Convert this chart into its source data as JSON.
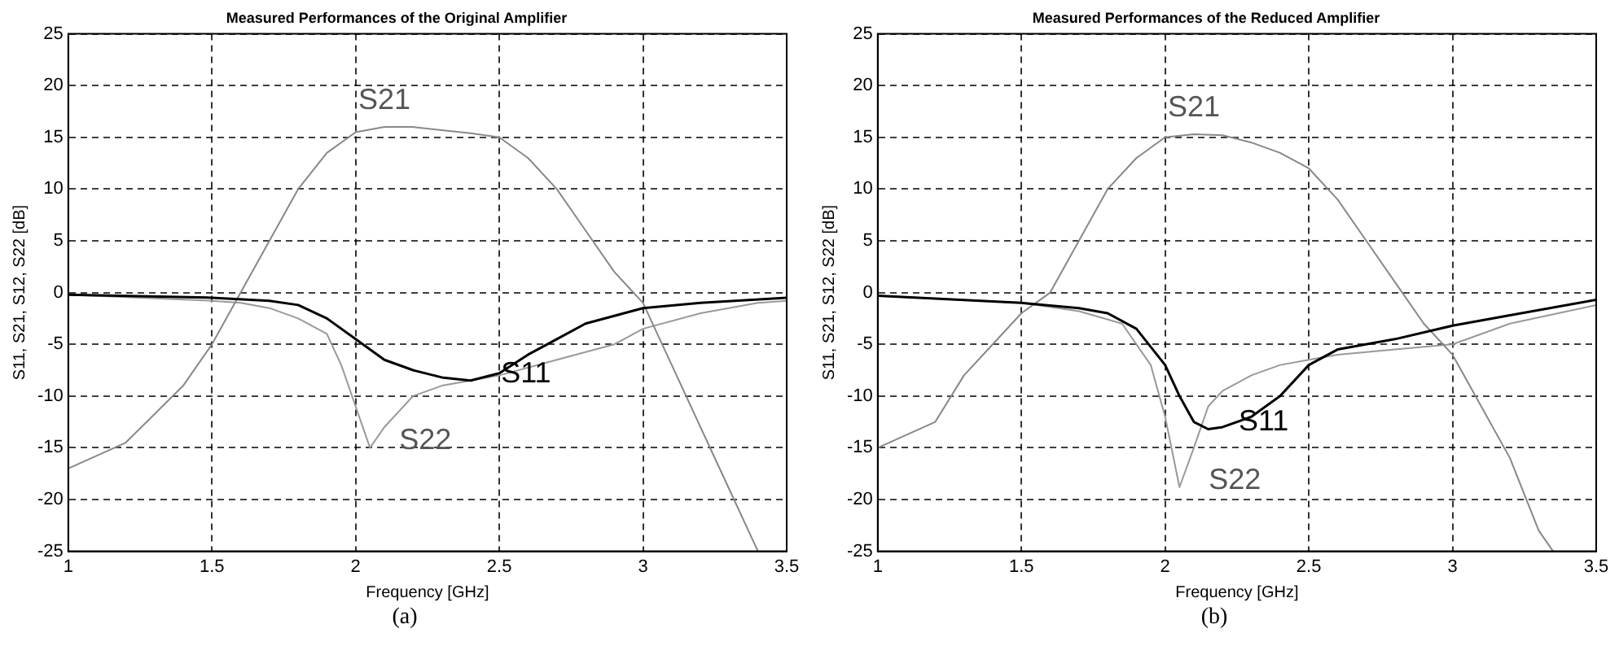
{
  "chart_data": [
    {
      "type": "line",
      "title": "Measured Performances of the Original Amplifier",
      "xlabel": "Frequency [GHz]",
      "ylabel": "S11, S21, S12, S22 [dB]",
      "xlim": [
        1,
        3.5
      ],
      "xticks": [
        1,
        1.5,
        2,
        2.5,
        3,
        3.5
      ],
      "ylim": [
        -25,
        25
      ],
      "yticks": [
        -25,
        -20,
        -15,
        -10,
        -5,
        0,
        5,
        10,
        15,
        20,
        25
      ],
      "grid": true,
      "legend": false,
      "marker": "none",
      "line_style": "solid",
      "series": [
        {
          "name": "S11",
          "color": "#000000",
          "x": [
            1,
            1.5,
            1.7,
            1.8,
            1.9,
            2.0,
            2.1,
            2.2,
            2.3,
            2.4,
            2.5,
            2.6,
            2.7,
            2.8,
            3.0,
            3.2,
            3.5
          ],
          "values": [
            -0.2,
            -0.5,
            -0.8,
            -1.2,
            -2.5,
            -4.5,
            -6.5,
            -7.5,
            -8.2,
            -8.5,
            -7.8,
            -6,
            -4.5,
            -3,
            -1.5,
            -1,
            -0.5
          ]
        },
        {
          "name": "S21",
          "color": "#888888",
          "x": [
            1,
            1.2,
            1.4,
            1.5,
            1.6,
            1.7,
            1.8,
            1.9,
            2.0,
            2.1,
            2.2,
            2.3,
            2.4,
            2.5,
            2.6,
            2.7,
            2.8,
            2.9,
            3.0,
            3.1,
            3.2,
            3.3,
            3.4
          ],
          "values": [
            -17,
            -14.5,
            -9,
            -5,
            0,
            5,
            10,
            13.5,
            15.5,
            16,
            16,
            15.7,
            15.4,
            15,
            13,
            10,
            6,
            2,
            -1,
            -7,
            -13,
            -19,
            -25
          ]
        },
        {
          "name": "S22",
          "color": "#999999",
          "x": [
            1,
            1.5,
            1.6,
            1.7,
            1.8,
            1.9,
            1.95,
            2.0,
            2.05,
            2.1,
            2.2,
            2.3,
            2.4,
            2.5,
            2.7,
            2.9,
            3.0,
            3.2,
            3.4,
            3.5
          ],
          "values": [
            -0.2,
            -0.8,
            -1,
            -1.5,
            -2.5,
            -4,
            -7,
            -11,
            -15,
            -13,
            -10,
            -9,
            -8.5,
            -8,
            -6.5,
            -5,
            -3.5,
            -2,
            -1,
            -0.8
          ]
        }
      ],
      "annotations": [
        "(a)"
      ]
    },
    {
      "type": "line",
      "title": "Measured Performances of the Reduced Amplifier",
      "xlabel": "Frequency [GHz]",
      "ylabel": "S11, S21, S12, S22 [dB]",
      "xlim": [
        1,
        3.5
      ],
      "xticks": [
        1,
        1.5,
        2,
        2.5,
        3,
        3.5
      ],
      "ylim": [
        -25,
        25
      ],
      "yticks": [
        -25,
        -20,
        -15,
        -10,
        -5,
        0,
        5,
        10,
        15,
        20,
        25
      ],
      "grid": true,
      "legend": false,
      "marker": "none",
      "line_style": "solid",
      "series": [
        {
          "name": "S11",
          "color": "#000000",
          "x": [
            1,
            1.5,
            1.7,
            1.8,
            1.9,
            2.0,
            2.05,
            2.1,
            2.15,
            2.2,
            2.3,
            2.4,
            2.5,
            2.6,
            2.8,
            3.0,
            3.2,
            3.5
          ],
          "values": [
            -0.3,
            -1,
            -1.5,
            -2,
            -3.5,
            -7,
            -10,
            -12.5,
            -13.2,
            -13,
            -12,
            -10,
            -7,
            -5.5,
            -4.5,
            -3.2,
            -2.2,
            -0.7
          ]
        },
        {
          "name": "S21",
          "color": "#888888",
          "x": [
            1,
            1.2,
            1.3,
            1.4,
            1.5,
            1.6,
            1.7,
            1.8,
            1.9,
            2.0,
            2.1,
            2.2,
            2.3,
            2.4,
            2.5,
            2.6,
            2.7,
            2.8,
            2.9,
            3.0,
            3.1,
            3.2,
            3.3,
            3.35
          ],
          "values": [
            -15,
            -12.5,
            -8,
            -5,
            -2,
            0,
            5,
            10,
            13,
            15,
            15.3,
            15.2,
            14.5,
            13.5,
            12,
            9,
            5,
            1,
            -3,
            -6,
            -11,
            -16,
            -23,
            -25
          ]
        },
        {
          "name": "S22",
          "color": "#999999",
          "x": [
            1,
            1.5,
            1.7,
            1.85,
            1.95,
            2.0,
            2.05,
            2.1,
            2.15,
            2.2,
            2.3,
            2.4,
            2.5,
            2.6,
            2.8,
            3.0,
            3.2,
            3.5
          ],
          "values": [
            -0.3,
            -1,
            -1.8,
            -3,
            -7,
            -12,
            -18.8,
            -15,
            -11,
            -9.5,
            -8,
            -7,
            -6.5,
            -6,
            -5.5,
            -5,
            -3,
            -1.2
          ]
        }
      ],
      "annotations": [
        "(b)"
      ]
    }
  ]
}
